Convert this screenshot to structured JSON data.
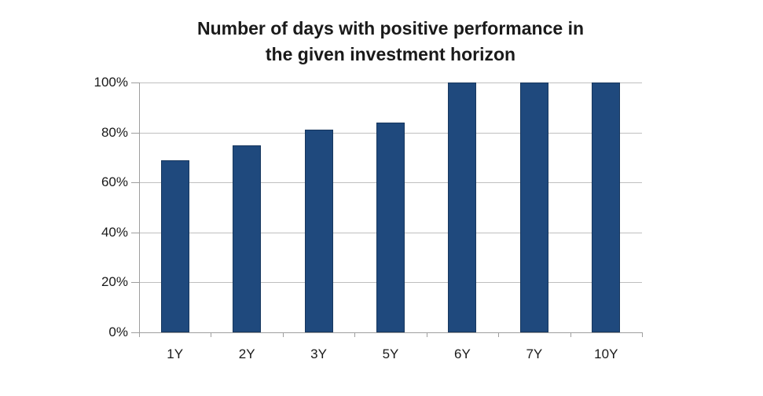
{
  "title": {
    "line1": "Number of days with positive performance in",
    "line2": "the given investment horizon"
  },
  "chart_data": {
    "type": "bar",
    "title": "Number of days with positive performance in the given investment horizon",
    "categories": [
      "1Y",
      "2Y",
      "3Y",
      "5Y",
      "6Y",
      "7Y",
      "10Y"
    ],
    "values": [
      69,
      75,
      81,
      84,
      100,
      100,
      100
    ],
    "xlabel": "",
    "ylabel": "",
    "ylim": [
      0,
      100
    ],
    "y_ticks": [
      0,
      20,
      40,
      60,
      80,
      100
    ],
    "y_tick_labels": [
      "0%",
      "20%",
      "40%",
      "60%",
      "80%",
      "100%"
    ],
    "grid": true,
    "legend": false,
    "colors": {
      "bar_fill": "#1F497D",
      "bar_border": "#17375E",
      "gridline": "#BFBFBF",
      "axis": "#9E9E9E",
      "text": "#1A1A1A"
    }
  }
}
